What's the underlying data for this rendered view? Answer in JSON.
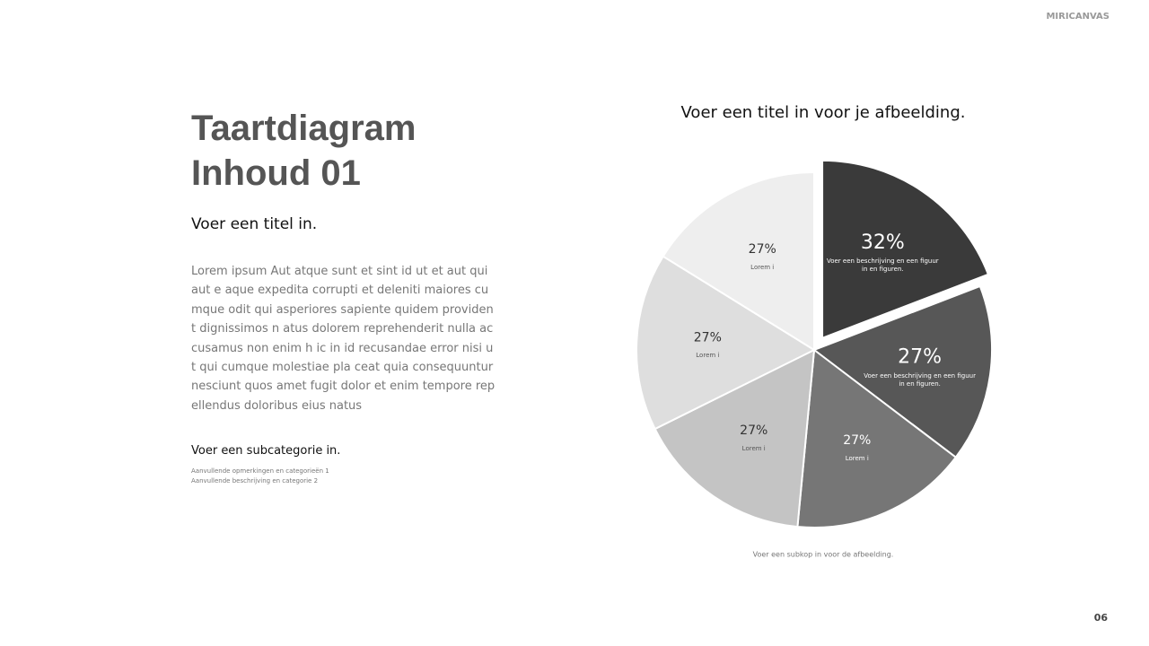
{
  "brand": "MIRICANVAS",
  "heading": [
    "Taartdiagram",
    "Inhoud 01"
  ],
  "subtitle": "Voer een titel in.",
  "body": "Lorem ipsum Aut atque sunt et sint id ut et aut qui aut e aque expedita corrupti et deleniti maiores cumque odit qui asperiores sapiente quidem provident dignissimos n atus dolorem reprehenderit nulla accusamus non enim h ic in id recusandae error nisi ut qui cumque molestiae pla ceat quia consequuntur nesciunt quos amet fugit dolor et enim tempore repellendus doloribus eius natus",
  "subcategory": "Voer een subcategorie in.",
  "notes": [
    "Aanvullende opmerkingen en categorieën 1",
    "Aanvullende beschrijving en categorie 2"
  ],
  "page_number": "06",
  "chart_data": {
    "type": "pie",
    "title": "Voer een titel in voor je afbeelding.",
    "subtitle": "Voer een subkop in voor de afbeelding.",
    "categories": [
      "Voer een beschrijving en een figuur in en figuren.",
      "Voer een beschrijving en een figuur in en figuren.",
      "Lorem i",
      "Lorem i",
      "Lorem i",
      "Lorem i"
    ],
    "values": [
      32,
      27,
      27,
      27,
      27,
      27
    ],
    "value_labels": [
      "32%",
      "27%",
      "27%",
      "27%",
      "27%",
      "27%"
    ],
    "colors": [
      "#3a3a3a",
      "#575757",
      "#767676",
      "#c4c4c4",
      "#dedede",
      "#eeeeee"
    ],
    "exploded": [
      true,
      false,
      false,
      false,
      false,
      false
    ]
  }
}
